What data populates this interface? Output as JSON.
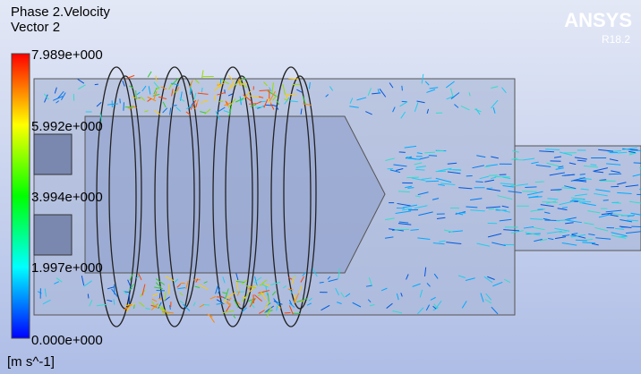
{
  "header": {
    "title": "Phase 2.Velocity",
    "subtitle": "Vector 2"
  },
  "legend": {
    "labels": [
      "7.989e+000",
      "5.992e+000",
      "3.994e+000",
      "1.997e+000",
      "0.000e+000"
    ],
    "unit": "[m s^-1]"
  },
  "logo": {
    "brand": "ANSYS",
    "version": "R18.2"
  }
}
